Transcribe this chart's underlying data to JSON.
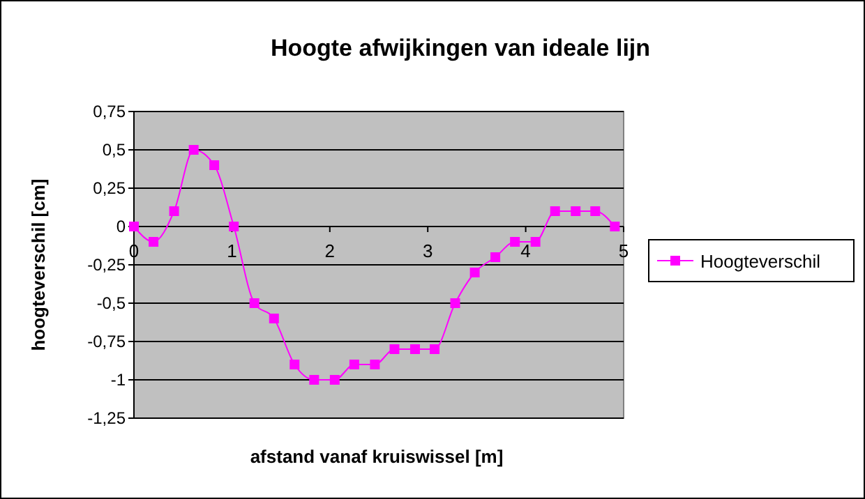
{
  "chart_data": {
    "type": "line",
    "title": "Hoogte afwijkingen van ideale lijn",
    "xlabel": "afstand vanaf kruiswissel [m]",
    "ylabel": "hoogteverschil [cm]",
    "x": [
      0,
      0.2,
      0.41,
      0.61,
      0.82,
      1.02,
      1.23,
      1.43,
      1.64,
      1.84,
      2.05,
      2.25,
      2.46,
      2.66,
      2.87,
      3.07,
      3.28,
      3.48,
      3.69,
      3.89,
      4.1,
      4.3,
      4.51,
      4.71,
      4.91
    ],
    "series": [
      {
        "name": "Hoogteverschil",
        "color": "#ff00ff",
        "values": [
          0,
          -0.1,
          0.1,
          0.5,
          0.4,
          0,
          -0.5,
          -0.6,
          -0.9,
          -1,
          -1,
          -0.9,
          -0.9,
          -0.8,
          -0.8,
          -0.8,
          -0.5,
          -0.3,
          -0.2,
          -0.1,
          -0.1,
          0.1,
          0.1,
          0.1,
          0
        ]
      }
    ],
    "xlim": [
      0,
      5
    ],
    "xticks": [
      0,
      1,
      2,
      3,
      4,
      5
    ],
    "ylim": [
      -1.25,
      0.75
    ],
    "yticks": [
      {
        "value": -1.25,
        "label": "-1,25"
      },
      {
        "value": -1,
        "label": "-1"
      },
      {
        "value": -0.75,
        "label": "-0,75"
      },
      {
        "value": -0.5,
        "label": "-0,5"
      },
      {
        "value": -0.25,
        "label": "-0,25"
      },
      {
        "value": 0,
        "label": "0"
      },
      {
        "value": 0.25,
        "label": "0,25"
      },
      {
        "value": 0.5,
        "label": "0,5"
      },
      {
        "value": 0.75,
        "label": "0,75"
      }
    ],
    "grid": "y",
    "legend": "right",
    "marker": "square",
    "line_style": "solid"
  }
}
